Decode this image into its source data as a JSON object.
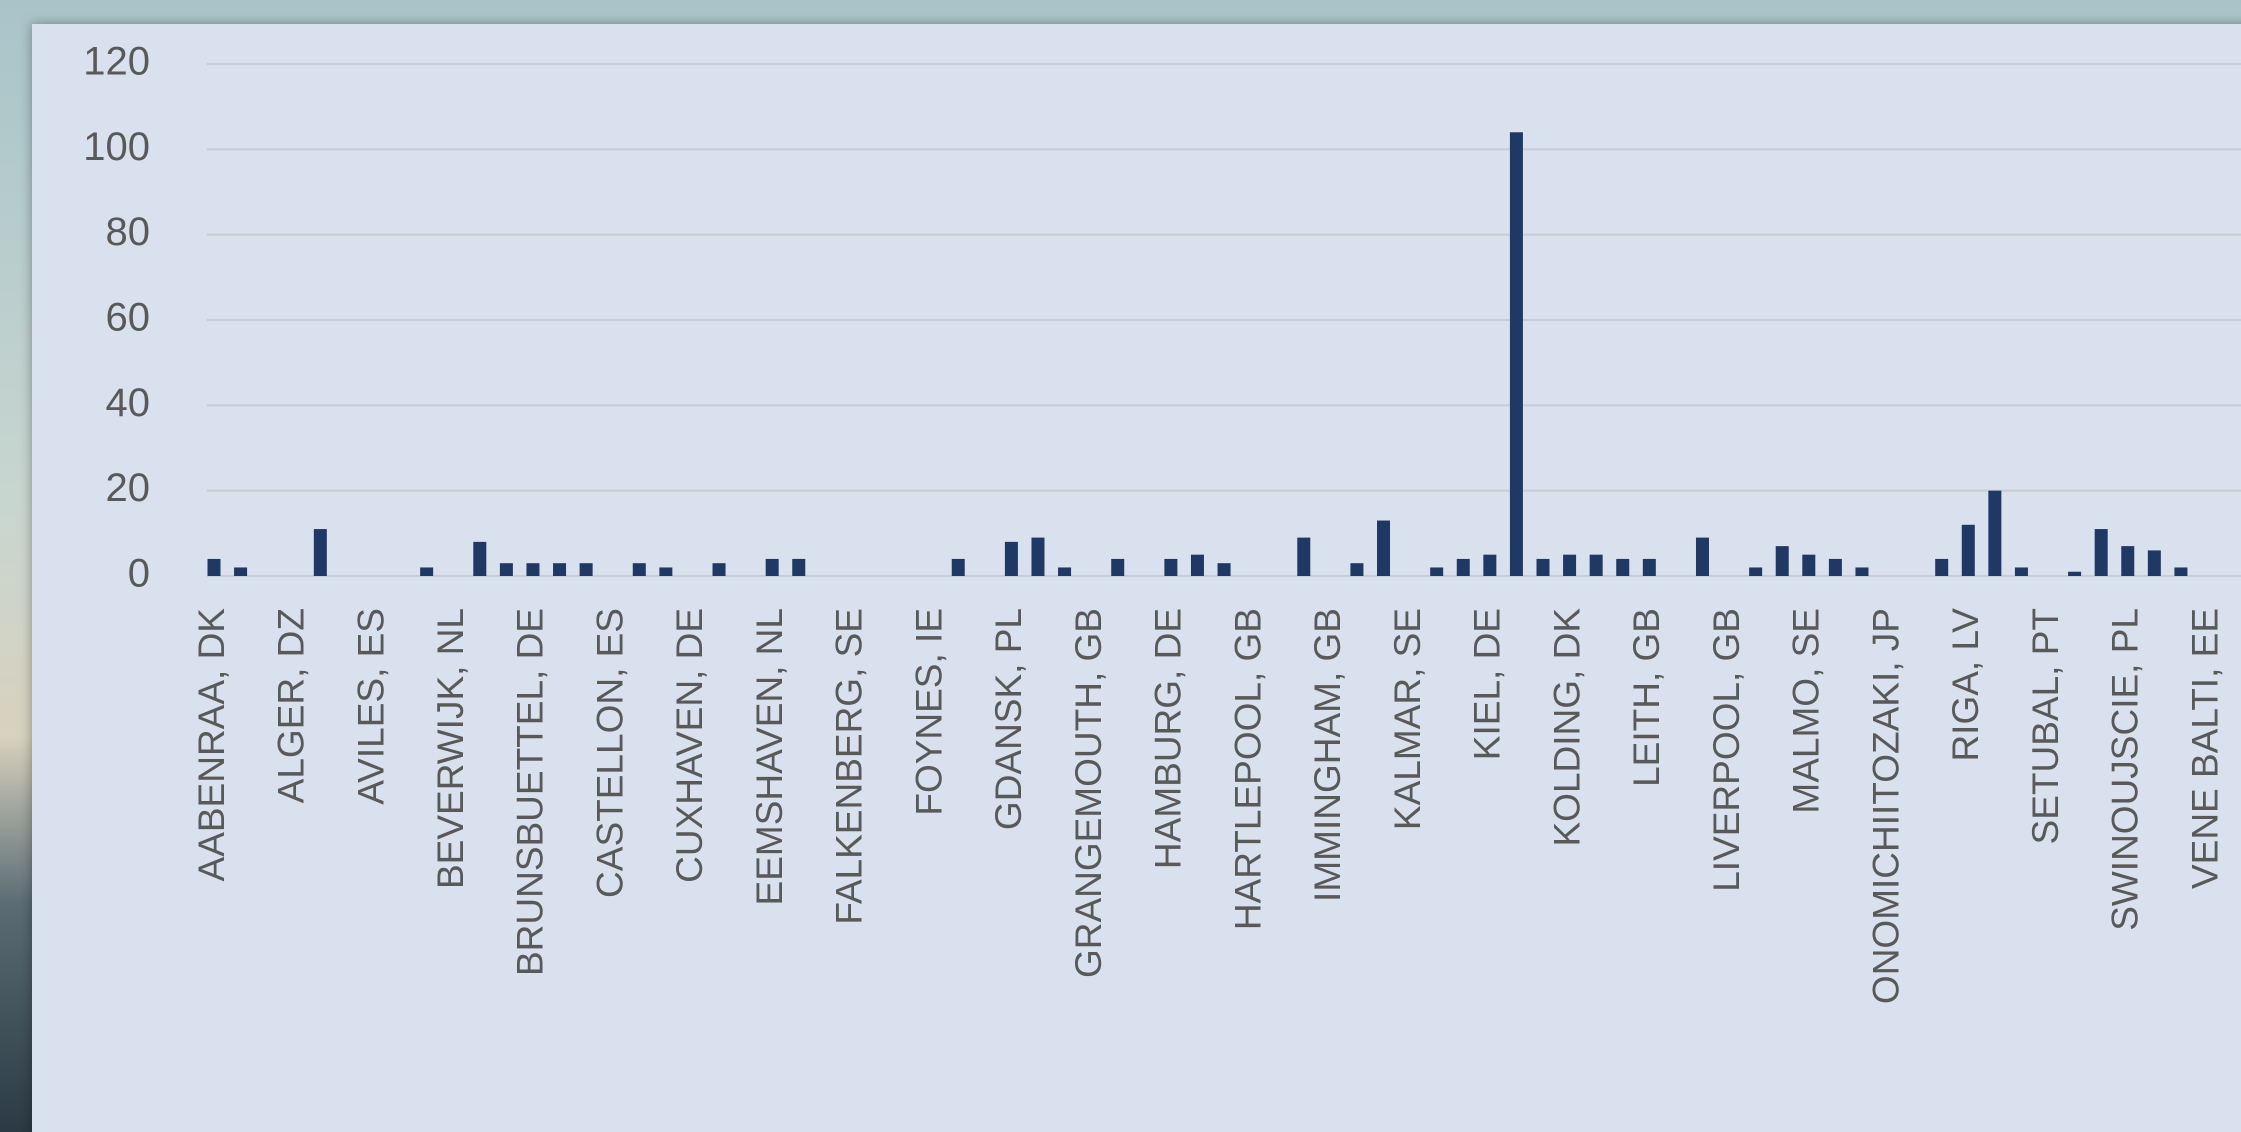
{
  "chart_data": {
    "type": "bar",
    "categories": [
      "AABENRAA, DK",
      null,
      null,
      "ALGER, DZ",
      null,
      null,
      "AVILES, ES",
      null,
      null,
      "BEVERWIJK, NL",
      null,
      null,
      "BRUNSBUETTEL, DE",
      null,
      null,
      "CASTELLON, ES",
      null,
      null,
      "CUXHAVEN, DE",
      null,
      null,
      "EEMSHAVEN, NL",
      null,
      null,
      "FALKENBERG, SE",
      null,
      null,
      "FOYNES, IE",
      null,
      null,
      "GDANSK, PL",
      null,
      null,
      "GRANGEMOUTH, GB",
      null,
      null,
      "HAMBURG, DE",
      null,
      null,
      "HARTLEPOOL, GB",
      null,
      null,
      "IMMINGHAM, GB",
      null,
      null,
      "KALMAR, SE",
      null,
      null,
      "KIEL, DE",
      null,
      null,
      "KOLDING, DK",
      null,
      null,
      "LEITH, GB",
      null,
      null,
      "LIVERPOOL, GB",
      null,
      null,
      "MALMO, SE",
      null,
      null,
      "ONOMICHIITOZAKI, JP",
      null,
      null,
      "RIGA, LV",
      null,
      null,
      "SETUBAL, PT",
      null,
      null,
      "SWINOUJSCIE, PL",
      null,
      null,
      "VENE BALTI, EE"
    ],
    "values": [
      4,
      2,
      0,
      0,
      11,
      0,
      0,
      0,
      2,
      0,
      8,
      3,
      3,
      3,
      3,
      0,
      3,
      2,
      0,
      3,
      0,
      4,
      4,
      0,
      0,
      0,
      0,
      0,
      4,
      0,
      8,
      9,
      2,
      0,
      4,
      0,
      4,
      5,
      3,
      0,
      0,
      9,
      0,
      3,
      13,
      0,
      2,
      4,
      5,
      104,
      4,
      5,
      5,
      4,
      4,
      0,
      9,
      0,
      2,
      7,
      5,
      4,
      2,
      0,
      0,
      4,
      12,
      20,
      2,
      0,
      1,
      11,
      7,
      6,
      2,
      0
    ],
    "color": "#1f3864",
    "ylim": [
      0,
      120
    ],
    "yticks": [
      0,
      20,
      40,
      60,
      80,
      100,
      120
    ],
    "grid": true
  }
}
